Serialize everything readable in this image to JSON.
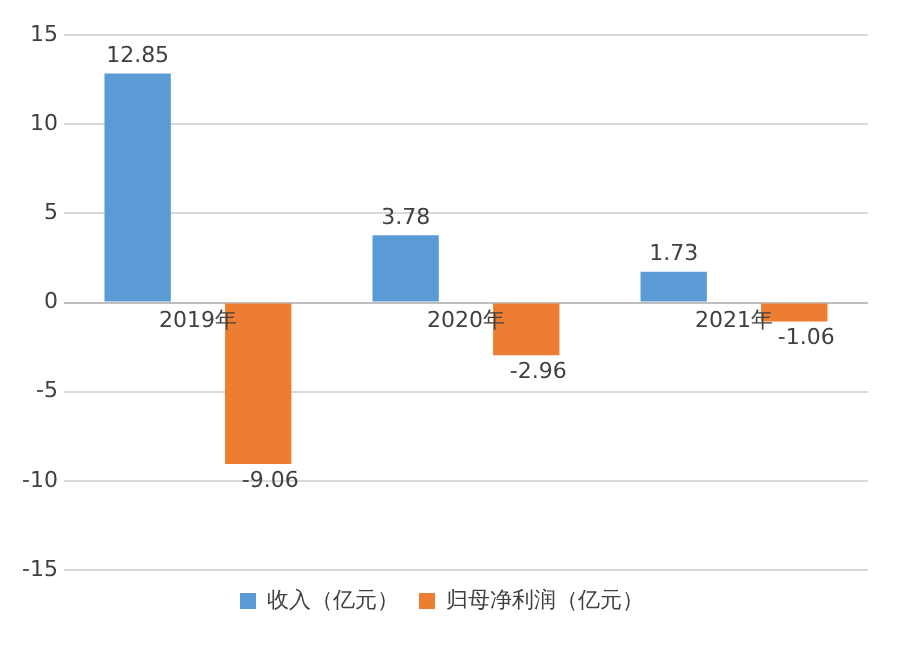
{
  "chart_data": {
    "type": "bar",
    "categories": [
      "2019年",
      "2020年",
      "2021年"
    ],
    "series": [
      {
        "name": "收入（亿元）",
        "color": "#5b9bd5",
        "values": [
          12.85,
          3.78,
          1.73
        ]
      },
      {
        "name": "归母净利润（亿元）",
        "color": "#ed7d31",
        "values": [
          -9.06,
          -2.96,
          -1.06
        ]
      }
    ],
    "ylim": [
      -15,
      15
    ],
    "yticks": [
      -15,
      -10,
      -5,
      0,
      5,
      10,
      15
    ],
    "grid": "y",
    "legend": "bottom",
    "data_labels": true
  }
}
